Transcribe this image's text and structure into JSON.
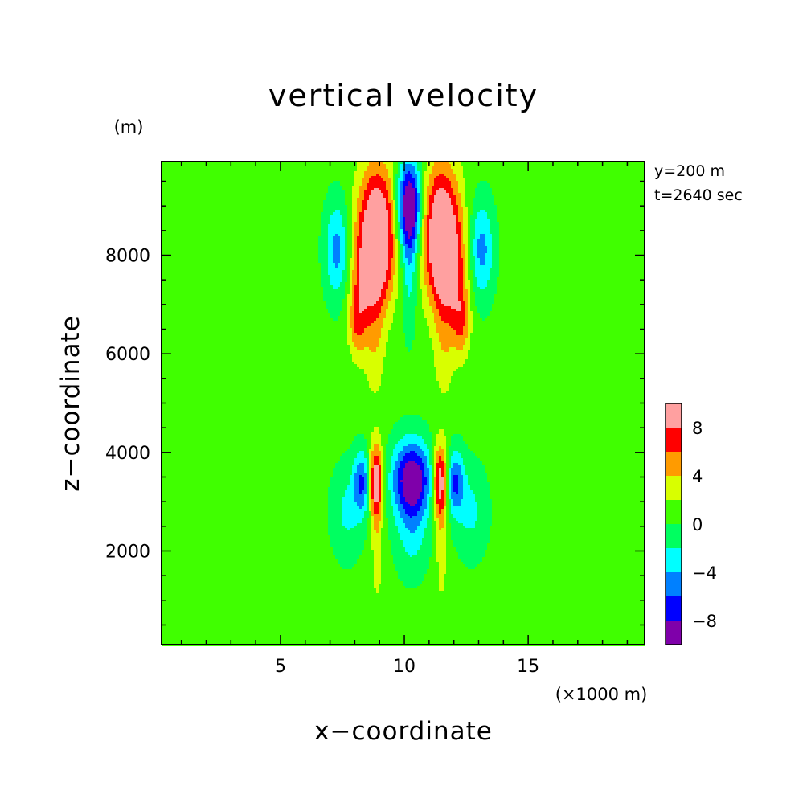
{
  "chart_data": {
    "type": "heatmap",
    "title": "vertical velocity",
    "xlabel": "x−coordinate",
    "ylabel": "z−coordinate",
    "x_unit": "(×1000 m)",
    "y_unit": "(m)",
    "annotations": [
      "y=200 m",
      "t=2640 sec"
    ],
    "xlim": [
      0.2,
      19.7
    ],
    "ylim": [
      100,
      9900
    ],
    "x_ticks": [
      5,
      10,
      15
    ],
    "y_ticks": [
      2000,
      4000,
      6000,
      8000
    ],
    "colorbar": {
      "levels": [
        -10,
        -8,
        -6,
        -4,
        -2,
        0,
        2,
        4,
        6,
        8,
        10
      ],
      "tick_labels": [
        "-8",
        "-4",
        "0",
        "4",
        "8"
      ],
      "tick_values": [
        -8,
        -4,
        0,
        4,
        8
      ],
      "colors": [
        "#7f00aa",
        "#0000ff",
        "#0080ff",
        "#00ffff",
        "#00ff60",
        "#40ff00",
        "#d8ff00",
        "#ff9b00",
        "#ff0000",
        "#ffa0a0"
      ]
    },
    "features": [
      {
        "x": 8.9,
        "z": 8500,
        "sx": 0.55,
        "sz": 950,
        "amp": 11
      },
      {
        "x": 11.5,
        "z": 8500,
        "sx": 0.55,
        "sz": 950,
        "amp": 11
      },
      {
        "x": 8.55,
        "z": 7500,
        "sx": 0.5,
        "sz": 700,
        "amp": 5
      },
      {
        "x": 11.85,
        "z": 7500,
        "sx": 0.5,
        "sz": 700,
        "amp": 5
      },
      {
        "x": 10.2,
        "z": 9000,
        "sx": 0.35,
        "sz": 650,
        "amp": -12
      },
      {
        "x": 10.2,
        "z": 7700,
        "sx": 0.22,
        "sz": 900,
        "amp": -3.5
      },
      {
        "x": 7.3,
        "z": 8100,
        "sx": 0.35,
        "sz": 700,
        "amp": -5.5
      },
      {
        "x": 13.1,
        "z": 8100,
        "sx": 0.35,
        "sz": 700,
        "amp": -5.5
      },
      {
        "x": 8.1,
        "z": 6600,
        "sx": 0.25,
        "sz": 500,
        "amp": 4.5
      },
      {
        "x": 12.3,
        "z": 6600,
        "sx": 0.25,
        "sz": 500,
        "amp": 4.5
      },
      {
        "x": 8.8,
        "z": 6000,
        "sx": 0.3,
        "sz": 700,
        "amp": 2.5
      },
      {
        "x": 11.6,
        "z": 6000,
        "sx": 0.3,
        "sz": 700,
        "amp": 2.5
      },
      {
        "x": 10.3,
        "z": 3450,
        "sx": 0.55,
        "sz": 550,
        "amp": -11
      },
      {
        "x": 10.3,
        "z": 2300,
        "sx": 0.45,
        "sz": 600,
        "amp": -3
      },
      {
        "x": 8.85,
        "z": 3400,
        "sx": 0.2,
        "sz": 550,
        "amp": 10
      },
      {
        "x": 11.45,
        "z": 3400,
        "sx": 0.2,
        "sz": 550,
        "amp": 10
      },
      {
        "x": 8.3,
        "z": 3400,
        "sx": 0.25,
        "sz": 450,
        "amp": -6.5
      },
      {
        "x": 12.05,
        "z": 3400,
        "sx": 0.25,
        "sz": 450,
        "amp": -6.5
      },
      {
        "x": 7.7,
        "z": 2800,
        "sx": 0.45,
        "sz": 650,
        "amp": -3
      },
      {
        "x": 12.7,
        "z": 2800,
        "sx": 0.45,
        "sz": 650,
        "amp": -3
      },
      {
        "x": 8.9,
        "z": 1900,
        "sx": 0.15,
        "sz": 700,
        "amp": 2.5
      },
      {
        "x": 11.5,
        "z": 1900,
        "sx": 0.15,
        "sz": 700,
        "amp": 2.5
      }
    ]
  }
}
